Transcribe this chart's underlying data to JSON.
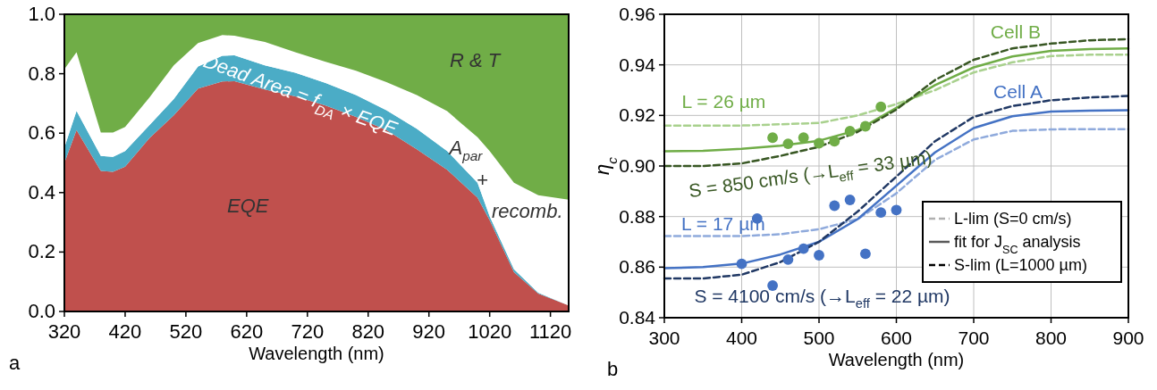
{
  "chart_data": [
    {
      "type": "area",
      "stacked": true,
      "xlabel": "Wavelength (nm)",
      "x": [
        320,
        340,
        380,
        400,
        420,
        460,
        500,
        540,
        580,
        600,
        650,
        700,
        750,
        800,
        850,
        900,
        950,
        1000,
        1020,
        1060,
        1100,
        1150
      ],
      "xlim": [
        320,
        1150
      ],
      "xticks": [
        320,
        420,
        520,
        620,
        720,
        820,
        920,
        1020,
        1120
      ],
      "ylim": [
        0,
        1
      ],
      "yticks": [
        {
          "value": 0,
          "label": "0.0"
        },
        0.2,
        0.4,
        0.6,
        0.8,
        {
          "value": 1,
          "label": "1.0"
        }
      ],
      "grid": false,
      "series": [
        {
          "color": "#c0504d",
          "values": [
            0.5,
            0.61,
            0.473,
            0.47,
            0.487,
            0.583,
            0.66,
            0.75,
            0.774,
            0.775,
            0.747,
            0.724,
            0.693,
            0.655,
            0.61,
            0.546,
            0.477,
            0.383,
            0.307,
            0.132,
            0.06,
            0.02
          ]
        },
        {
          "color": "#4bacc6",
          "values": [
            0.052,
            0.065,
            0.05,
            0.05,
            0.053,
            0.044,
            0.055,
            0.074,
            0.086,
            0.087,
            0.081,
            0.079,
            0.076,
            0.073,
            0.067,
            0.069,
            0.063,
            0.05,
            0.013,
            0.01,
            0.003,
            0
          ]
        },
        {
          "color": "#ffffff",
          "values": [
            0.263,
            0.197,
            0.079,
            0.082,
            0.081,
            0.093,
            0.113,
            0.079,
            0.07,
            0.066,
            0.079,
            0.069,
            0.071,
            0.082,
            0.095,
            0.113,
            0.134,
            0.153,
            0.22,
            0.291,
            0.328,
            0.356
          ]
        },
        {
          "color": "#70ad47",
          "values": [
            0.185,
            0.128,
            0.398,
            0.398,
            0.379,
            0.28,
            0.172,
            0.097,
            0.07,
            0.072,
            0.093,
            0.128,
            0.16,
            0.19,
            0.228,
            0.272,
            0.326,
            0.414,
            0.46,
            0.567,
            0.609,
            0.624
          ]
        }
      ],
      "annotations": [
        "R & T",
        "Dead Area = f$_{DA}$ × EQE",
        "EQE",
        "A$_{par}$",
        "+",
        "recomb.",
        "a"
      ]
    },
    {
      "type": "line",
      "xlabel": "Wavelength (nm)",
      "ylabel": "η$_{c}$",
      "xlim": [
        300,
        900
      ],
      "xticks": [
        300,
        400,
        500,
        600,
        700,
        800,
        900
      ],
      "ylim": [
        0.84,
        0.96
      ],
      "yticks": [
        0.84,
        0.86,
        0.88,
        {
          "value": 0.9,
          "label": "0.90"
        },
        0.92,
        0.94,
        0.96
      ],
      "grid": true,
      "marker": "none",
      "x": [
        300,
        350,
        400,
        450,
        500,
        550,
        600,
        650,
        700,
        750,
        800,
        850,
        900
      ],
      "series": [
        {
          "color": "#a9d18e",
          "line_style": "dashed",
          "values": [
            0.916,
            0.916,
            0.916,
            0.9165,
            0.917,
            0.92,
            0.9245,
            0.93,
            0.937,
            0.941,
            0.9435,
            0.944,
            0.944
          ]
        },
        {
          "color": "#70ad47",
          "line_style": "solid",
          "values": [
            0.9058,
            0.906,
            0.9068,
            0.908,
            0.91,
            0.9142,
            0.923,
            0.932,
            0.939,
            0.9433,
            0.9455,
            0.9462,
            0.9465
          ]
        },
        {
          "color": "#385723",
          "line_style": "dashed",
          "values": [
            0.9,
            0.9,
            0.901,
            0.904,
            0.9076,
            0.9135,
            0.9223,
            0.934,
            0.942,
            0.9465,
            0.9484,
            0.9497,
            0.9502
          ]
        },
        {
          "color": "#8faadc",
          "line_style": "dashed",
          "values": [
            0.8723,
            0.8723,
            0.8723,
            0.873,
            0.875,
            0.879,
            0.8892,
            0.9024,
            0.9105,
            0.9139,
            0.9145,
            0.9146,
            0.9146
          ]
        },
        {
          "color": "#4472c4",
          "line_style": "solid",
          "values": [
            0.8596,
            0.86,
            0.8614,
            0.865,
            0.87,
            0.879,
            0.8922,
            0.9054,
            0.915,
            0.9197,
            0.9215,
            0.9219,
            0.9221
          ]
        },
        {
          "color": "#203864",
          "line_style": "dashed",
          "values": [
            0.8555,
            0.8555,
            0.857,
            0.862,
            0.87,
            0.882,
            0.8958,
            0.9098,
            0.9194,
            0.9237,
            0.926,
            0.9271,
            0.9277
          ]
        },
        {
          "type": "scatter",
          "marker": "circle",
          "color": "#70ad47",
          "x": [
            440,
            460,
            480,
            500,
            520,
            540,
            560,
            580
          ],
          "values": [
            0.9112,
            0.9088,
            0.9112,
            0.909,
            0.9098,
            0.9138,
            0.9157,
            0.9234
          ]
        },
        {
          "type": "scatter",
          "marker": "circle",
          "color": "#4472c4",
          "x": [
            400,
            420,
            440,
            460,
            480,
            500,
            520,
            540,
            560,
            580,
            600
          ],
          "values": [
            0.8613,
            0.8792,
            0.8527,
            0.863,
            0.8673,
            0.8647,
            0.8843,
            0.8866,
            0.8653,
            0.8816,
            0.8826
          ]
        }
      ],
      "annotations": [
        "L-lim (S=0 cm/s)",
        "fit for J$_{SC}$ analysis",
        "S-lim (L=1000 µm)",
        "Cell B",
        "Cell A",
        "L = 26 µm",
        "S = 850 cm/s (→L$_{eff}$ = 33 µm)",
        "L = 17 µm",
        "S = 4100 cm/s (→L$_{eff}$ = 22 µm)",
        "b"
      ]
    }
  ]
}
